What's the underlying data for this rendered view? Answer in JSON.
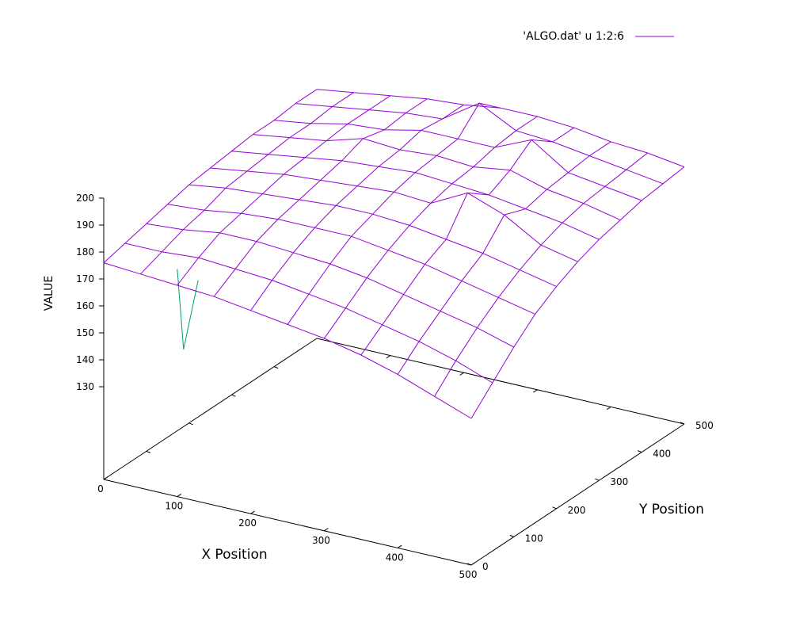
{
  "chart_data": {
    "type": "surface",
    "title": "",
    "xlabel": "X Position",
    "ylabel": "Y Position",
    "zlabel": "VALUE",
    "legend": {
      "label": "'ALGO.dat' u 1:2:6",
      "position": "top-right"
    },
    "xlim": [
      0,
      500
    ],
    "ylim": [
      0,
      500
    ],
    "zlim": [
      130,
      200
    ],
    "x_ticks": [
      "0",
      "100",
      "200",
      "300",
      "400",
      "500"
    ],
    "y_ticks": [
      "0",
      "100",
      "200",
      "300",
      "400",
      "500"
    ],
    "z_ticks": [
      "130",
      "140",
      "150",
      "160",
      "170",
      "180",
      "190",
      "200"
    ],
    "colors": {
      "surface": "#9400d3",
      "underside": "#009e73",
      "axes": "#000000"
    },
    "x": [
      0,
      50,
      100,
      150,
      200,
      250,
      300,
      350,
      400,
      450,
      500
    ],
    "y": [
      0,
      50,
      100,
      150,
      200,
      250,
      300,
      350,
      400,
      450,
      500
    ],
    "z": [
      [
        176,
        178,
        180,
        182,
        184,
        185,
        186,
        187,
        187,
        188,
        188
      ],
      [
        175,
        178,
        181,
        183,
        186,
        187,
        188,
        189,
        189,
        190,
        190
      ],
      [
        174,
        179,
        183,
        185,
        187,
        189,
        190,
        191,
        192,
        192,
        192
      ],
      [
        173,
        178,
        183,
        186,
        188,
        190,
        192,
        195,
        193,
        194,
        194
      ],
      [
        171,
        177,
        182,
        186,
        189,
        191,
        193,
        194,
        196,
        195,
        195
      ],
      [
        169,
        175,
        181,
        186,
        189,
        192,
        194,
        195,
        196,
        204,
        197
      ],
      [
        167,
        173,
        179,
        184,
        188,
        191,
        193,
        194,
        196,
        197,
        197
      ],
      [
        164,
        170,
        176,
        182,
        186,
        198,
        192,
        196,
        202,
        196,
        196
      ],
      [
        160,
        167,
        173,
        179,
        184,
        193,
        190,
        192,
        193,
        194,
        194
      ],
      [
        155,
        163,
        170,
        176,
        181,
        185,
        188,
        190,
        191,
        192,
        193
      ],
      [
        150,
        158,
        166,
        173,
        178,
        182,
        185,
        187,
        189,
        190,
        191
      ]
    ]
  }
}
